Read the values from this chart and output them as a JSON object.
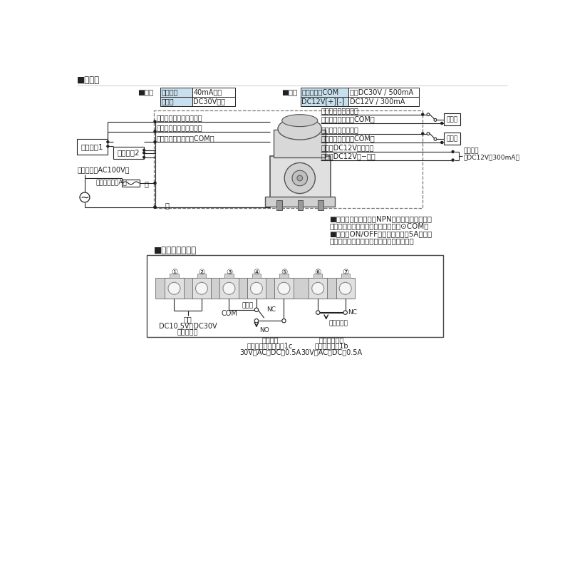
{
  "bg_color": "#ffffff",
  "line_color": "#222222",
  "table_header_bg": "#c8e0ee",
  "title1": "■回転灯",
  "title2": "■赤外線センサー",
  "in_label": "■入力",
  "out_label": "■出力",
  "in_row1_col1": "電流容量",
  "in_row1_col2": "40mA以上",
  "in_row2_col1": "耗電圧",
  "in_row2_col2": "DC30V以上",
  "out_row1_col1": "出力、出力COM",
  "out_row1_col2": "定格DC30V / 500mA",
  "out_row2_col1": "DC12V[+][-]",
  "out_row2_col2": "DC12V / 300mA",
  "sensor1_label": "センサー1",
  "sensor2_label": "センサー2",
  "wire_yellow": "黄色（センサー入力１）",
  "wire_blue_in": "青色（センサー入力２）",
  "wire_gray_in": "灰色（センサー入力COM）",
  "wire_orange": "橙色（順方向出力）",
  "wire_green": "緑色（順方向出力COM）",
  "wire_light_blue": "水色（逆方向出力）",
  "wire_purple": "紫色（逆方向出力COM）",
  "wire_blue_out": "青色（DC12V［＋］）",
  "wire_gray_out": "炀色（DC12V［−］）",
  "setsubi1": "設備１",
  "setsubi2": "設備２",
  "power_out_line1": "電源出力",
  "power_out_line2": "（DC12V・300mA）",
  "input_power": "入力電源（AC100V）",
  "fuse_label": "ヒューズ（１A）",
  "white_wire": "白",
  "black_wire": "黒",
  "note1": "■スイッチの代わりにNPNオープンコレクタ、",
  "note2": "またはフォトカプラにて制御可能（⊙COM）",
  "note3": "■電源のON/OFFには、接点定格5A以上の",
  "note4": "スイッチまたはリレーをご使用ください。",
  "term_labels": [
    "①",
    "②",
    "③",
    "④",
    "⑤",
    "⑥",
    "⑦"
  ],
  "power_label_l1": "電源",
  "power_label_l2": "DC10.5V～DC30V",
  "power_label_l3": "（無極性）",
  "alarm_time": "警報時",
  "com_label": "COM",
  "nc_label": "NC",
  "no_label": "NO",
  "alarm_out_l1": "警報出力",
  "alarm_out_l2": "無電圧リレー接点：1c",
  "alarm_out_l3": "30V（AC・DC）0.5A",
  "cover_open": "カバー開時",
  "tamper_out_l1": "タンパー出力",
  "tamper_out_l2": "無電圧接点：1b",
  "tamper_out_l3": "30V（AC・DC）0.5A"
}
